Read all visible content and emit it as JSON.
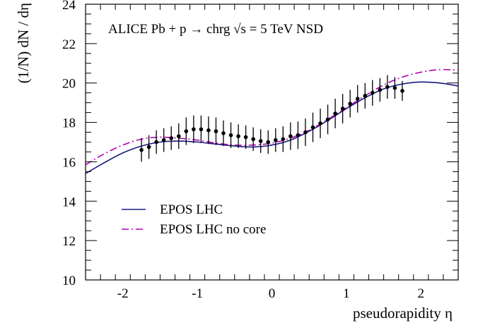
{
  "chart_data": {
    "type": "line",
    "title": "",
    "annotation": "ALICE Pb + p → chrg √s = 5 TeV NSD",
    "xlabel": "pseudorapidity η",
    "ylabel": "(1/N) dN / dη",
    "xlim": [
      -2.5,
      2.5
    ],
    "ylim": [
      10,
      24
    ],
    "x_ticks": [
      -2,
      -1,
      0,
      1,
      2
    ],
    "x_tick_labels": [
      "-2",
      "-1",
      "0",
      "1",
      "2"
    ],
    "y_ticks": [
      10,
      12,
      14,
      16,
      18,
      20,
      22,
      24
    ],
    "y_tick_labels": [
      "10",
      "12",
      "14",
      "16",
      "18",
      "20",
      "22",
      "24"
    ],
    "grid": false,
    "legend_position": "bottom-left",
    "series": [
      {
        "name": "EPOS LHC",
        "style": "solid",
        "color": "#1a1a80",
        "x": [
          -2.5,
          -2.25,
          -2.0,
          -1.75,
          -1.5,
          -1.25,
          -1.0,
          -0.75,
          -0.5,
          -0.25,
          0.0,
          0.25,
          0.5,
          0.75,
          1.0,
          1.25,
          1.5,
          1.75,
          2.0,
          2.25,
          2.5
        ],
        "y": [
          15.4,
          15.95,
          16.45,
          16.8,
          17.0,
          17.05,
          17.0,
          16.9,
          16.8,
          16.75,
          16.85,
          17.1,
          17.55,
          18.1,
          18.7,
          19.25,
          19.7,
          19.95,
          20.05,
          20.0,
          19.85
        ]
      },
      {
        "name": "EPOS LHC no core",
        "style": "dashdot",
        "color": "#b000b0",
        "x": [
          -2.5,
          -2.25,
          -2.0,
          -1.75,
          -1.5,
          -1.25,
          -1.0,
          -0.75,
          -0.5,
          -0.25,
          0.0,
          0.25,
          0.5,
          0.75,
          1.0,
          1.25,
          1.5,
          1.75,
          2.0,
          2.25,
          2.5
        ],
        "y": [
          15.85,
          16.4,
          16.85,
          17.15,
          17.25,
          17.2,
          17.1,
          16.95,
          16.85,
          16.85,
          16.95,
          17.2,
          17.6,
          18.15,
          18.75,
          19.35,
          19.9,
          20.3,
          20.55,
          20.68,
          20.65
        ]
      },
      {
        "name": "ALICE data",
        "style": "points",
        "color": "#000000",
        "x": [
          -1.75,
          -1.65,
          -1.55,
          -1.45,
          -1.35,
          -1.25,
          -1.15,
          -1.05,
          -0.95,
          -0.85,
          -0.75,
          -0.65,
          -0.55,
          -0.45,
          -0.35,
          -0.25,
          -0.15,
          -0.05,
          0.05,
          0.15,
          0.25,
          0.35,
          0.45,
          0.55,
          0.65,
          0.75,
          0.85,
          0.95,
          1.05,
          1.15,
          1.25,
          1.35,
          1.45,
          1.55,
          1.65,
          1.75
        ],
        "y": [
          16.6,
          16.75,
          17.0,
          17.1,
          17.2,
          17.3,
          17.55,
          17.65,
          17.65,
          17.6,
          17.55,
          17.45,
          17.35,
          17.3,
          17.25,
          17.15,
          17.05,
          17.0,
          17.1,
          17.15,
          17.3,
          17.35,
          17.5,
          17.75,
          17.95,
          18.15,
          18.45,
          18.7,
          18.95,
          19.2,
          19.35,
          19.5,
          19.65,
          19.8,
          19.75,
          19.6
        ],
        "err": [
          0.6,
          0.6,
          0.6,
          0.6,
          0.6,
          0.65,
          0.7,
          0.7,
          0.7,
          0.7,
          0.7,
          0.65,
          0.65,
          0.6,
          0.6,
          0.6,
          0.6,
          0.6,
          0.6,
          0.65,
          0.7,
          0.7,
          0.7,
          0.75,
          0.75,
          0.75,
          0.75,
          0.75,
          0.7,
          0.7,
          0.65,
          0.65,
          0.6,
          0.6,
          0.55,
          0.5
        ]
      }
    ]
  }
}
